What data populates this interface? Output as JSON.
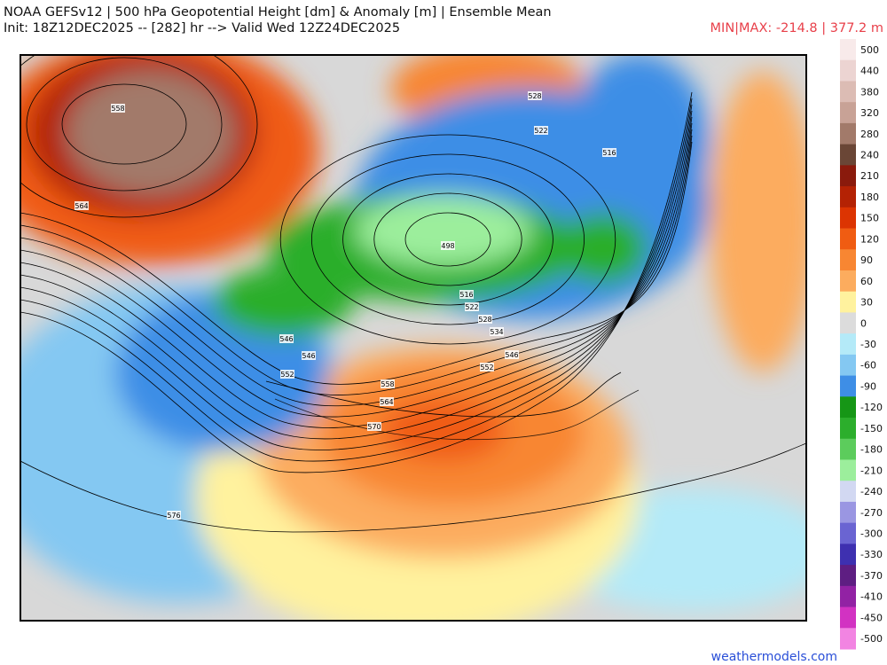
{
  "header": {
    "title": "NOAA GEFSv12 | 500 hPa Geopotential Height [dm] & Anomaly [m] | Ensemble Mean",
    "subtitle": "Init: 18Z12DEC2025 -- [282] hr --> Valid Wed 12Z24DEC2025",
    "minmax": "MIN|MAX: -214.8 | 377.2 m"
  },
  "colorbar": {
    "ticks": [
      500,
      440,
      380,
      320,
      280,
      240,
      210,
      180,
      150,
      120,
      90,
      60,
      30,
      0,
      -30,
      -60,
      -90,
      -120,
      -150,
      -180,
      -210,
      -240,
      -270,
      -300,
      -330,
      -370,
      -410,
      -450,
      -500
    ],
    "colors": [
      "#f8eaea",
      "#ecd4d2",
      "#dcbcb4",
      "#c8a296",
      "#a27a6a",
      "#6a4636",
      "#8a1a0c",
      "#b42204",
      "#dc3402",
      "#f05c12",
      "#f88632",
      "#fcac5e",
      "#fff29e",
      "#dcdcdc",
      "#b4eaf8",
      "#84c8f2",
      "#3e8ee6",
      "#169616",
      "#2cae2c",
      "#5ccc5c",
      "#9cee9c",
      "#d2d8f2",
      "#9a96e2",
      "#6a64d2",
      "#3e30b0",
      "#5e1e82",
      "#9222a4",
      "#d232c2",
      "#f284e2"
    ]
  },
  "contour_labels": [
    558,
    564,
    576,
    498,
    516,
    522,
    528,
    534,
    546,
    552,
    546,
    546,
    552,
    558,
    564,
    570,
    528,
    522,
    516
  ],
  "footer": {
    "credit": "weathermodels.com"
  }
}
